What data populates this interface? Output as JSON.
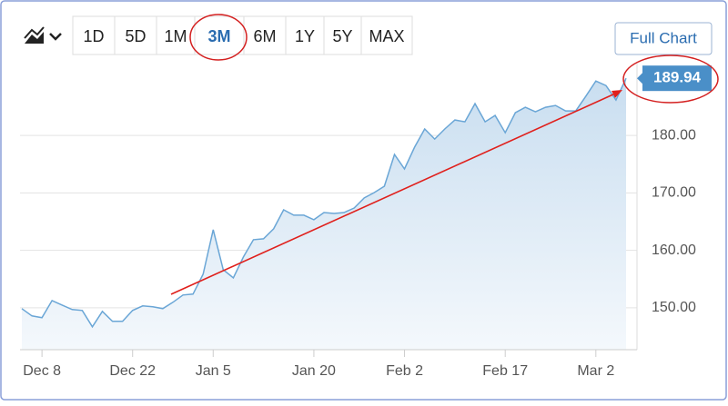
{
  "toolbar": {
    "ranges": [
      "1D",
      "5D",
      "1M",
      "3M",
      "6M",
      "1Y",
      "5Y",
      "MAX"
    ],
    "active": "3M",
    "full_chart": "Full Chart"
  },
  "chart_data": {
    "type": "area",
    "color": "#6aa6d6",
    "categories": [
      null,
      null,
      "Dec 8",
      null,
      null,
      null,
      null,
      null,
      null,
      null,
      null,
      "Dec 22",
      null,
      null,
      null,
      null,
      null,
      null,
      null,
      "Jan 5",
      null,
      null,
      null,
      null,
      null,
      null,
      null,
      null,
      null,
      "Jan 20",
      null,
      null,
      null,
      null,
      null,
      null,
      null,
      null,
      "Feb 2",
      null,
      null,
      null,
      null,
      null,
      null,
      null,
      null,
      null,
      "Feb 17",
      null,
      null,
      null,
      null,
      null,
      null,
      null,
      null,
      "Mar 2",
      null,
      null,
      null
    ],
    "values": [
      149.84,
      148.58,
      148.26,
      151.26,
      150.47,
      149.68,
      149.53,
      146.68,
      149.37,
      147.63,
      147.63,
      149.53,
      150.32,
      150.16,
      149.84,
      150.95,
      152.21,
      152.37,
      155.84,
      163.58,
      156.63,
      155.21,
      158.84,
      161.84,
      162.0,
      163.74,
      167.05,
      166.11,
      166.11,
      165.32,
      166.58,
      166.42,
      166.58,
      167.37,
      169.11,
      170.05,
      171.16,
      176.68,
      174.16,
      177.95,
      181.11,
      179.37,
      181.11,
      182.68,
      182.37,
      185.53,
      182.37,
      183.47,
      180.47,
      183.95,
      184.89,
      184.11,
      184.89,
      185.21,
      184.26,
      184.26,
      186.79,
      189.47,
      188.68,
      186.16,
      189.94
    ],
    "ylim": [
      142.7,
      192.5
    ],
    "yticks": [
      {
        "value": 150,
        "label": "150.00"
      },
      {
        "value": 160,
        "label": "160.00"
      },
      {
        "value": 170,
        "label": "170.00"
      },
      {
        "value": 180,
        "label": "180.00"
      }
    ],
    "grid": true
  }
}
